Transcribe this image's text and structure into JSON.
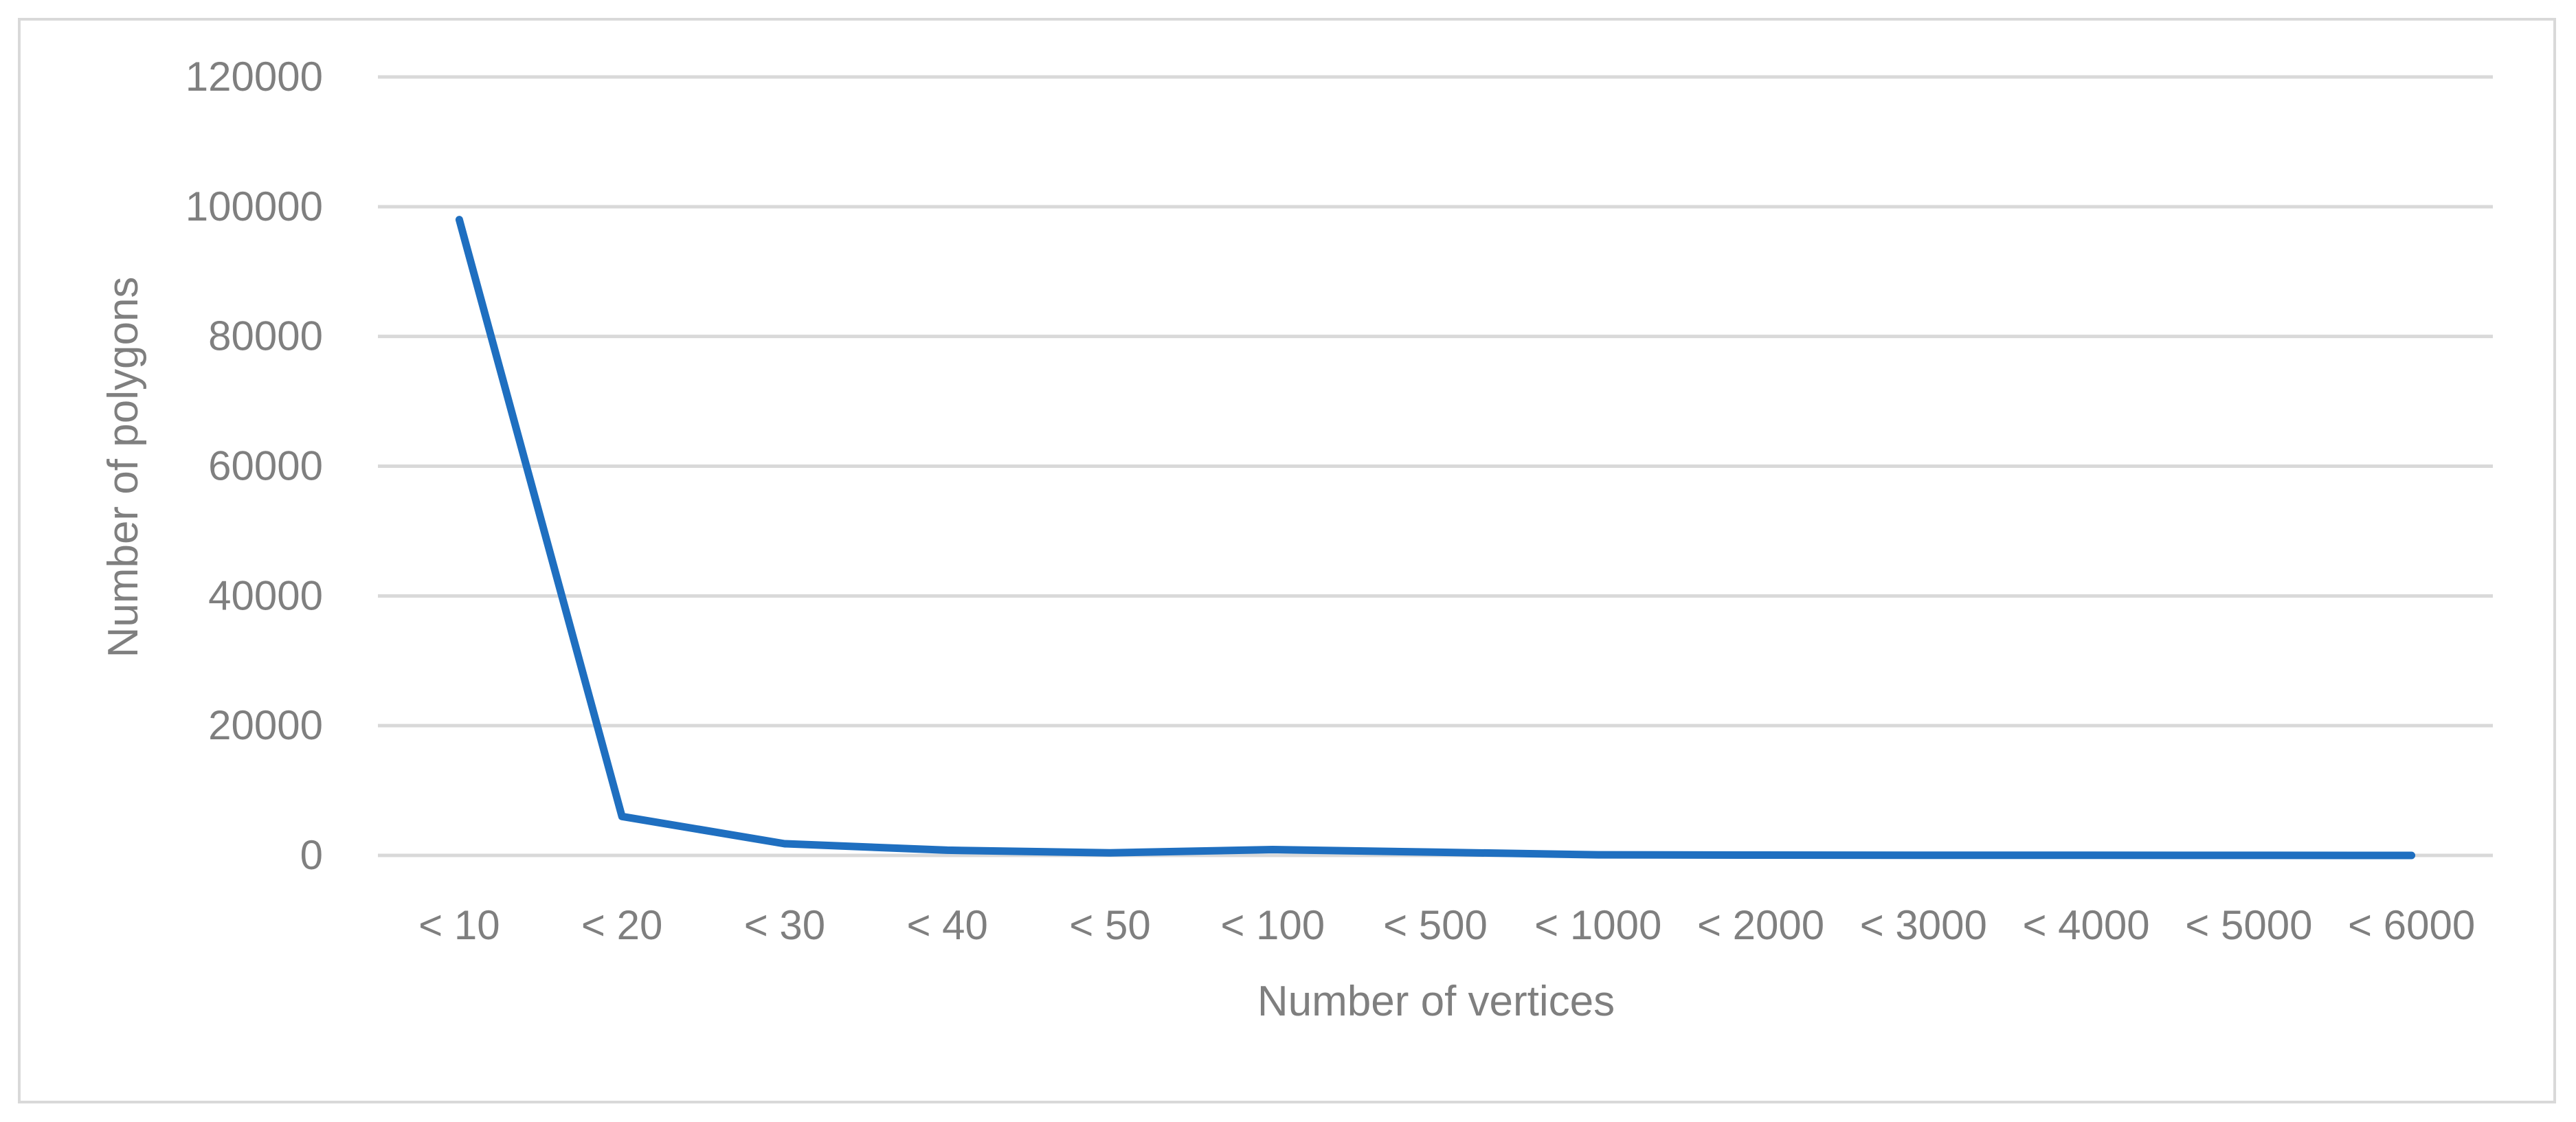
{
  "chart_data": {
    "type": "line",
    "title": "",
    "xlabel": "Number of vertices",
    "ylabel": "Number of polygons",
    "categories": [
      "< 10",
      "< 20",
      "< 30",
      "< 40",
      "< 50",
      "< 100",
      "< 500",
      "< 1000",
      "< 2000",
      "< 3000",
      "< 4000",
      "< 5000",
      "< 6000"
    ],
    "series": [
      {
        "values": [
          98000,
          6000,
          1800,
          800,
          400,
          900,
          500,
          100,
          50,
          30,
          20,
          10,
          5
        ],
        "color": "#1f6fc0"
      }
    ],
    "ylim": [
      0,
      120000
    ],
    "yticks": [
      0,
      20000,
      40000,
      60000,
      80000,
      100000,
      120000
    ],
    "ytick_labels": [
      "0",
      "20000",
      "40000",
      "60000",
      "80000",
      "100000",
      "120000"
    ],
    "grid": true,
    "legend": "none"
  },
  "colors": {
    "gridline": "#d9d9d9",
    "text": "#7f7f7f",
    "frame": "#d9d9d9"
  }
}
